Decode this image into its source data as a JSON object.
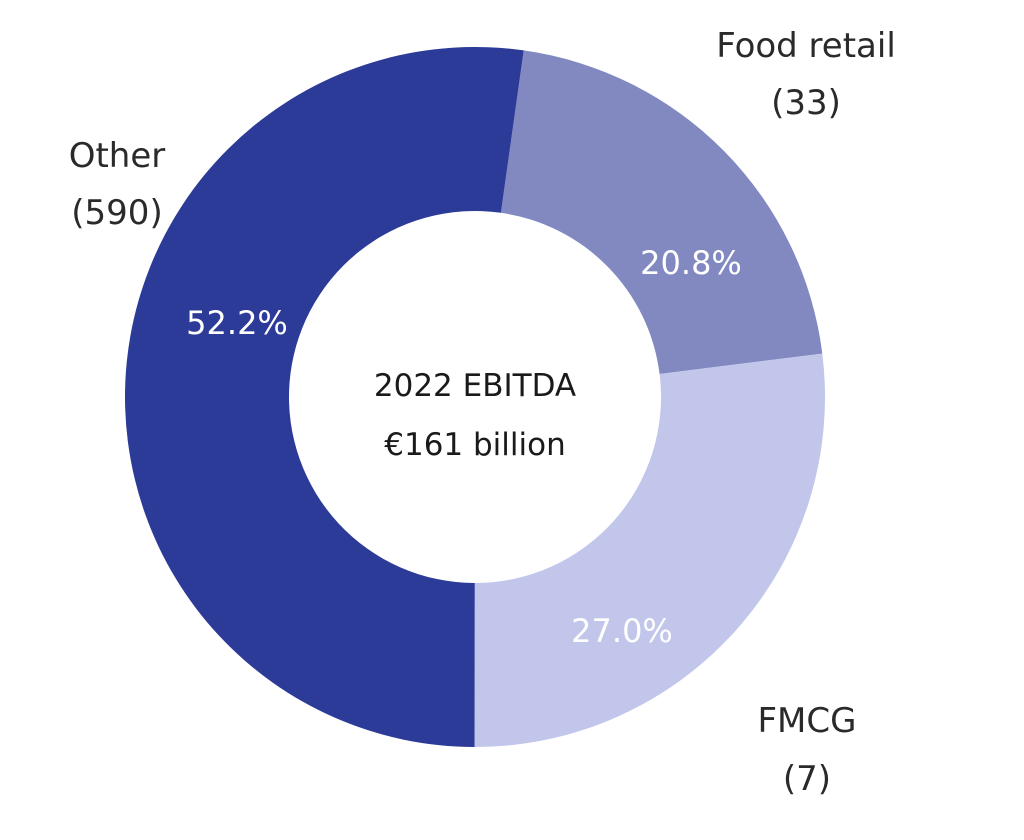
{
  "chart_data": {
    "type": "pie",
    "variant": "donut",
    "center_title": "2022 EBITDA",
    "center_value": "€161 billion",
    "slices": [
      {
        "category": "Food retail",
        "count_label": "(33)",
        "value": 20.8,
        "value_label": "20.8%",
        "color": "#8189c0"
      },
      {
        "category": "FMCG",
        "count_label": "(7)",
        "value": 27.0,
        "value_label": "27.0%",
        "color": "#c1c6ea"
      },
      {
        "category": "Other",
        "count_label": "(590)",
        "value": 52.2,
        "value_label": "52.2%",
        "color": "#2c3a98"
      }
    ]
  }
}
